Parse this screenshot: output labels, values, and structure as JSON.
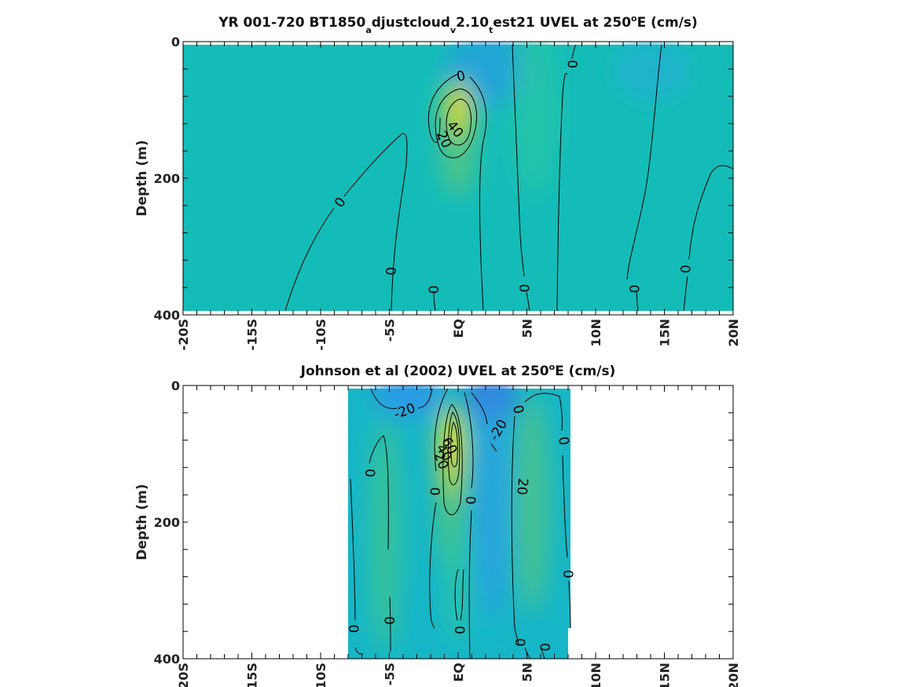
{
  "chart_data": [
    {
      "type": "heatmap",
      "title": {
        "prefix": "YR 001-720 BT1850",
        "sub1": "a",
        "mid1": "djustcloud",
        "sub2": "v",
        "mid2": "2.10",
        "sub3": "t",
        "mid3": "est21 UVEL at 250",
        "sup": "o",
        "suffix": "E (cm/s)"
      },
      "ylabel": "Depth (m)",
      "xlabel": "",
      "xlim": [
        -20,
        20
      ],
      "ylim": [
        0,
        400
      ],
      "y_reversed": true,
      "x_ticks": [
        -20,
        -15,
        -10,
        -5,
        0,
        5,
        10,
        15,
        20
      ],
      "x_tick_labels": [
        "-20S",
        "-15S",
        "-10S",
        "-5S",
        "EQ",
        "5N",
        "10N",
        "15N",
        "20N"
      ],
      "y_ticks": [
        0,
        200,
        400
      ],
      "y_tick_labels": [
        "0",
        "200",
        "400"
      ],
      "colormap": [
        "#3a6fe0",
        "#2a9ae6",
        "#13bcc2",
        "#3dc48e",
        "#9cd04f",
        "#f0e22f"
      ],
      "color_range": [
        -60,
        100
      ],
      "data_extent": {
        "x": [
          -20,
          20
        ],
        "depth": [
          5,
          395
        ]
      },
      "features": [
        {
          "label": "undercurrent core",
          "lat": 0,
          "depth": 120,
          "value": 50
        }
      ],
      "contour_labels": [
        {
          "text": "0",
          "lat": 0.2,
          "depth": 50,
          "angle": -15
        },
        {
          "text": "40",
          "lat": -0.2,
          "depth": 128,
          "angle": 50
        },
        {
          "text": "20",
          "lat": -1.0,
          "depth": 143,
          "angle": 65
        },
        {
          "text": "0",
          "lat": -8.6,
          "depth": 235,
          "angle": -55
        },
        {
          "text": "0",
          "lat": -4.9,
          "depth": 336,
          "angle": 88
        },
        {
          "text": "0",
          "lat": -1.8,
          "depth": 363,
          "angle": 90
        },
        {
          "text": "0",
          "lat": 4.8,
          "depth": 361,
          "angle": 90
        },
        {
          "text": "0",
          "lat": 8.3,
          "depth": 33,
          "angle": 90
        },
        {
          "text": "0",
          "lat": 12.8,
          "depth": 362,
          "angle": 90
        },
        {
          "text": "0",
          "lat": 16.5,
          "depth": 333,
          "angle": 90
        }
      ]
    },
    {
      "type": "heatmap",
      "title": {
        "prefix": "Johnson et al (2002) UVEL at 250",
        "sup": "o",
        "suffix": "E (cm/s)"
      },
      "ylabel": "Depth (m)",
      "xlabel": "",
      "xlim": [
        -20,
        20
      ],
      "ylim": [
        0,
        400
      ],
      "y_reversed": true,
      "x_ticks": [
        -20,
        -15,
        -10,
        -5,
        0,
        5,
        10,
        15,
        20
      ],
      "x_tick_labels": [
        "-20S",
        "-15S",
        "-10S",
        "-5S",
        "EQ",
        "5N",
        "10N",
        "15N",
        "20N"
      ],
      "y_ticks": [
        0,
        200,
        400
      ],
      "y_tick_labels": [
        "0",
        "200",
        "400"
      ],
      "colormap": [
        "#3a6fe0",
        "#2a9ae6",
        "#13bcc2",
        "#3dc48e",
        "#9cd04f",
        "#f0e22f"
      ],
      "color_range": [
        -60,
        100
      ],
      "data_extent": {
        "x": [
          -8,
          8
        ],
        "depth": [
          5,
          400
        ]
      },
      "features": [
        {
          "label": "undercurrent core",
          "lat": -0.5,
          "depth": 80,
          "value": 90
        },
        {
          "label": "surface westward flow",
          "lat": 2.5,
          "depth": 15,
          "value": -40
        }
      ],
      "contour_labels": [
        {
          "text": "-20",
          "lat": -3.9,
          "depth": 37,
          "angle": -20
        },
        {
          "text": "-20",
          "lat": 2.9,
          "depth": 65,
          "angle": -60
        },
        {
          "text": "40",
          "lat": -1.0,
          "depth": 98,
          "angle": 60
        },
        {
          "text": "60",
          "lat": -0.6,
          "depth": 88,
          "angle": 60
        },
        {
          "text": "20",
          "lat": -1.2,
          "depth": 110,
          "angle": 70
        },
        {
          "text": "0",
          "lat": -6.4,
          "depth": 128,
          "angle": 90
        },
        {
          "text": "0",
          "lat": -1.7,
          "depth": 155,
          "angle": 90
        },
        {
          "text": "0",
          "lat": 0.9,
          "depth": 168,
          "angle": 90
        },
        {
          "text": "20",
          "lat": 4.7,
          "depth": 148,
          "angle": 95
        },
        {
          "text": "0",
          "lat": 4.4,
          "depth": 35,
          "angle": 75
        },
        {
          "text": "0",
          "lat": 7.7,
          "depth": 81,
          "angle": 80
        },
        {
          "text": "0",
          "lat": 8.0,
          "depth": 276,
          "angle": 90
        },
        {
          "text": "0",
          "lat": -7.6,
          "depth": 356,
          "angle": 90
        },
        {
          "text": "0",
          "lat": -5.0,
          "depth": 344,
          "angle": 90
        },
        {
          "text": "0",
          "lat": 0.1,
          "depth": 358,
          "angle": 90
        },
        {
          "text": "0",
          "lat": 4.5,
          "depth": 376,
          "angle": 90
        },
        {
          "text": "0",
          "lat": 6.3,
          "depth": 383,
          "angle": 90
        }
      ]
    }
  ]
}
